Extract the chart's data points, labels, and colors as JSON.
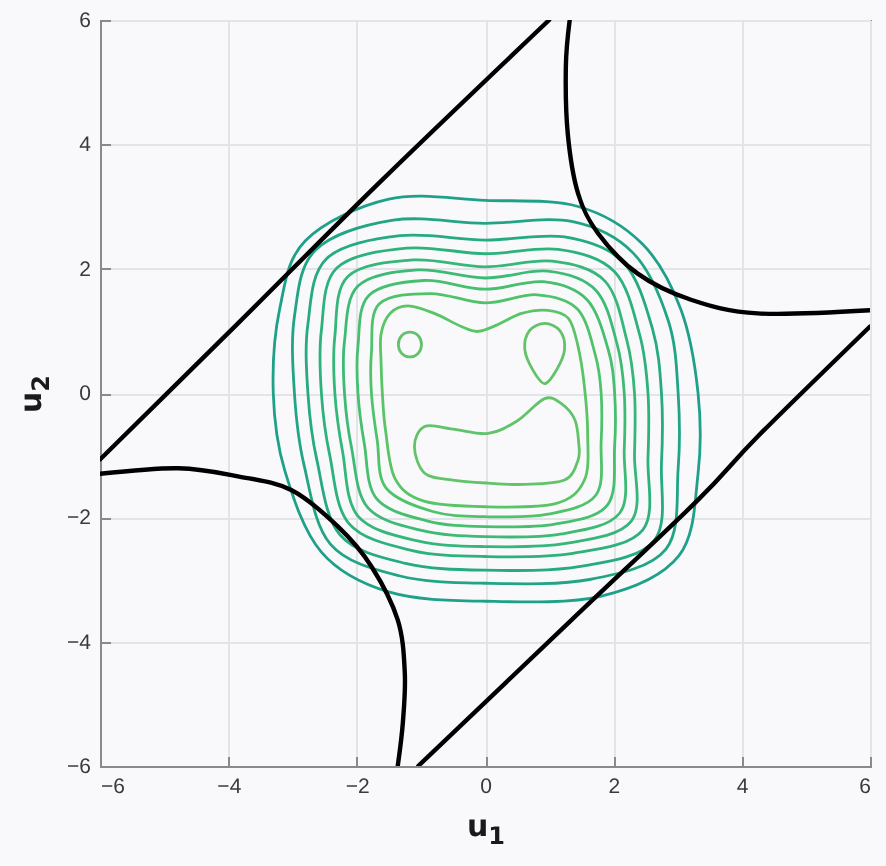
{
  "chart_data": {
    "type": "line",
    "xlabel": "u$_{1}$",
    "ylabel": "u$_{2}$",
    "xlim": [
      -6,
      6
    ],
    "ylim": [
      -6,
      6
    ],
    "xticks": [
      -6,
      -4,
      -2,
      0,
      2,
      4,
      6
    ],
    "yticks": [
      -6,
      -4,
      -2,
      0,
      2,
      4,
      6
    ],
    "grid": true,
    "series": [
      {
        "color": "#000000",
        "x": [
          -6,
          -3.85,
          -1.61,
          1.0
        ],
        "values": [
          -1.07,
          1.12,
          3.42,
          6
        ]
      },
      {
        "color": "#000000",
        "x": [
          1.32,
          1.26,
          1.29,
          1.45,
          1.76,
          2.38,
          3.21,
          4.25,
          6
        ],
        "values": [
          6,
          5.25,
          4.17,
          3.21,
          2.57,
          1.92,
          1.5,
          1.28,
          1.33
        ]
      },
      {
        "color": "#000000",
        "x": [
          -1.04,
          1.35,
          3.32,
          4.25,
          6
        ],
        "values": [
          -6,
          -3.65,
          -1.72,
          -0.7,
          1.07
        ]
      },
      {
        "color": "#000000",
        "x": [
          -6,
          -4.78,
          -3.85,
          -3.02,
          -2.29,
          -1.77,
          -1.36,
          -1.25,
          -1.28,
          -1.36
        ],
        "values": [
          -1.3,
          -1.21,
          -1.34,
          -1.56,
          -2.15,
          -2.79,
          -3.65,
          -4.5,
          -5.3,
          -6
        ]
      }
    ]
  }
}
